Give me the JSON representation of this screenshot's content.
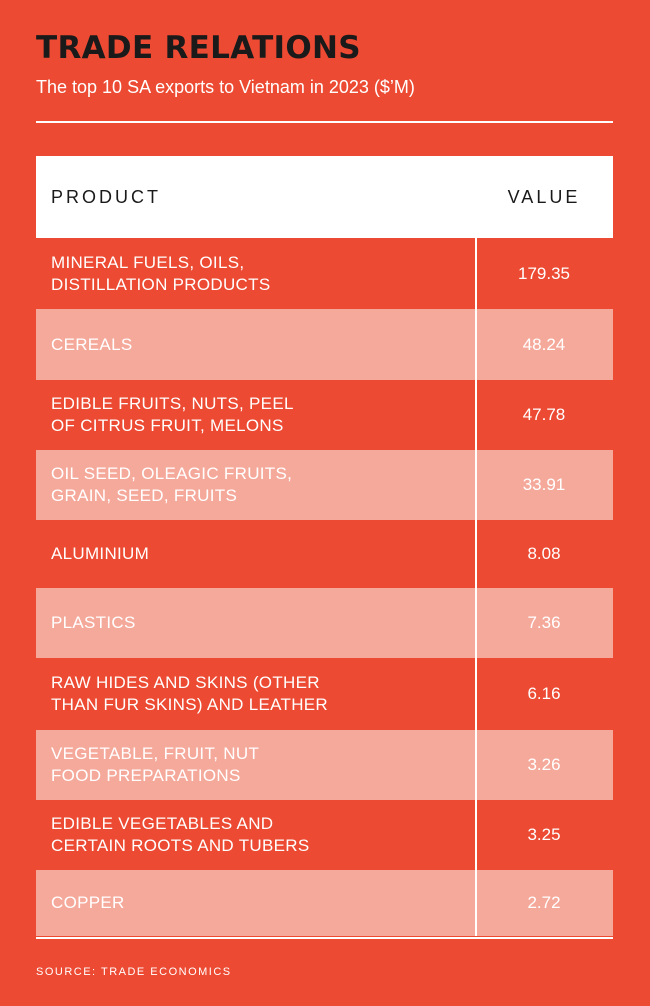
{
  "title": "TRADE RELATIONS",
  "subtitle": "The top 10 SA exports to Vietnam in 2023 ($’M)",
  "chart_data": {
    "type": "table",
    "columns": [
      "PRODUCT",
      "VALUE"
    ],
    "rows": [
      {
        "product": "MINERAL FUELS, OILS,\nDISTILLATION PRODUCTS",
        "value": "179.35"
      },
      {
        "product": "CEREALS",
        "value": "48.24"
      },
      {
        "product": "EDIBLE FRUITS, NUTS, PEEL\nOF CITRUS FRUIT, MELONS",
        "value": "47.78"
      },
      {
        "product": "OIL SEED, OLEAGIC FRUITS,\nGRAIN, SEED, FRUITS",
        "value": "33.91"
      },
      {
        "product": "ALUMINIUM",
        "value": "8.08"
      },
      {
        "product": "PLASTICS",
        "value": "7.36"
      },
      {
        "product": "RAW HIDES AND SKINS (OTHER\nTHAN FUR SKINS) AND LEATHER",
        "value": "6.16"
      },
      {
        "product": "VEGETABLE, FRUIT, NUT\nFOOD PREPARATIONS",
        "value": "3.26"
      },
      {
        "product": "EDIBLE VEGETABLES AND\nCERTAIN ROOTS AND TUBERS",
        "value": "3.25"
      },
      {
        "product": "COPPER",
        "value": "2.72"
      }
    ]
  },
  "source": "SOURCE: TRADE ECONOMICS",
  "colors": {
    "background": "#ec4a32",
    "stripe": "#f5a99b",
    "title": "#1a1a1a"
  }
}
